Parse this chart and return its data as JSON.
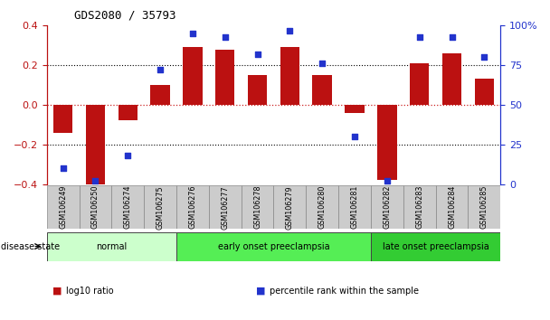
{
  "title": "GDS2080 / 35793",
  "samples": [
    "GSM106249",
    "GSM106250",
    "GSM106274",
    "GSM106275",
    "GSM106276",
    "GSM106277",
    "GSM106278",
    "GSM106279",
    "GSM106280",
    "GSM106281",
    "GSM106282",
    "GSM106283",
    "GSM106284",
    "GSM106285"
  ],
  "log10_ratio": [
    -0.14,
    -0.4,
    -0.08,
    0.1,
    0.29,
    0.28,
    0.15,
    0.29,
    0.15,
    -0.04,
    -0.38,
    0.21,
    0.26,
    0.13
  ],
  "percentile_rank": [
    10,
    2,
    18,
    72,
    95,
    93,
    82,
    97,
    76,
    30,
    2,
    93,
    93,
    80
  ],
  "bar_color": "#bb1111",
  "dot_color": "#2233cc",
  "ylim_left": [
    -0.4,
    0.4
  ],
  "ylim_right": [
    0,
    100
  ],
  "yticks_left": [
    -0.4,
    -0.2,
    0.0,
    0.2,
    0.4
  ],
  "yticks_right": [
    0,
    25,
    50,
    75,
    100
  ],
  "ytick_labels_right": [
    "0",
    "25",
    "50",
    "75",
    "100%"
  ],
  "groups": [
    {
      "label": "normal",
      "start": 0,
      "end": 3,
      "color": "#ccffcc"
    },
    {
      "label": "early onset preeclampsia",
      "start": 4,
      "end": 9,
      "color": "#55ee55"
    },
    {
      "label": "late onset preeclampsia",
      "start": 10,
      "end": 13,
      "color": "#33cc33"
    }
  ],
  "disease_state_label": "disease state",
  "legend_bar_label": "log10 ratio",
  "legend_dot_label": "percentile rank within the sample",
  "zero_line_color": "#cc2222"
}
